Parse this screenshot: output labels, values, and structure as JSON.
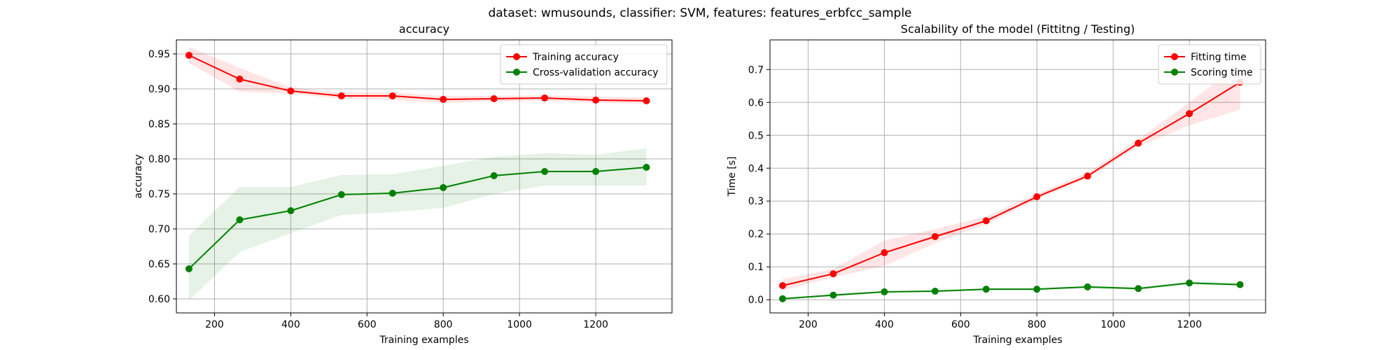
{
  "figure": {
    "suptitle": "dataset: wmusounds, classifier: SVM, features: features_erbfcc_sample"
  },
  "chart_data": [
    {
      "type": "line",
      "title": "accuracy",
      "xlabel": "Training examples",
      "ylabel": "accuracy",
      "xlim": [
        100,
        1400
      ],
      "ylim": [
        0.58,
        0.97
      ],
      "xticks": [
        200,
        400,
        600,
        800,
        1000,
        1200
      ],
      "yticks": [
        0.6,
        0.65,
        0.7,
        0.75,
        0.8,
        0.85,
        0.9,
        0.95
      ],
      "ytick_decimals": 2,
      "grid": true,
      "legend_position": "top-right",
      "x": [
        133,
        266,
        400,
        533,
        667,
        800,
        933,
        1066,
        1200,
        1333
      ],
      "series": [
        {
          "name": "Training accuracy",
          "color": "#ff0000",
          "values": [
            0.948,
            0.914,
            0.897,
            0.89,
            0.89,
            0.885,
            0.886,
            0.887,
            0.884,
            0.883
          ],
          "band_low": [
            0.937,
            0.896,
            0.893,
            0.886,
            0.884,
            0.88,
            0.882,
            0.883,
            0.88,
            0.879
          ],
          "band_high": [
            0.96,
            0.93,
            0.902,
            0.895,
            0.895,
            0.89,
            0.89,
            0.891,
            0.889,
            0.888
          ]
        },
        {
          "name": "Cross-validation accuracy",
          "color": "#008000",
          "values": [
            0.643,
            0.713,
            0.726,
            0.749,
            0.751,
            0.759,
            0.776,
            0.782,
            0.782,
            0.788
          ],
          "band_low": [
            0.598,
            0.667,
            0.694,
            0.72,
            0.724,
            0.73,
            0.75,
            0.762,
            0.762,
            0.762
          ],
          "band_high": [
            0.69,
            0.76,
            0.76,
            0.777,
            0.778,
            0.79,
            0.803,
            0.808,
            0.806,
            0.815
          ]
        }
      ]
    },
    {
      "type": "line",
      "title": "Scalability of the model (Fittitng / Testing)",
      "xlabel": "Training examples",
      "ylabel": "Time [s]",
      "xlim": [
        100,
        1400
      ],
      "ylim": [
        -0.04,
        0.79
      ],
      "xticks": [
        200,
        400,
        600,
        800,
        1000,
        1200
      ],
      "yticks": [
        0.0,
        0.1,
        0.2,
        0.3,
        0.4,
        0.5,
        0.6,
        0.7
      ],
      "ytick_decimals": 1,
      "grid": true,
      "legend_position": "top-right",
      "x": [
        133,
        266,
        400,
        533,
        667,
        800,
        933,
        1066,
        1200,
        1333
      ],
      "series": [
        {
          "name": "Fitting time",
          "color": "#ff0000",
          "values": [
            0.043,
            0.079,
            0.143,
            0.192,
            0.24,
            0.313,
            0.376,
            0.476,
            0.566,
            0.661
          ],
          "band_low": [
            0.028,
            0.068,
            0.103,
            0.172,
            0.23,
            0.305,
            0.368,
            0.466,
            0.53,
            0.578
          ],
          "band_high": [
            0.063,
            0.093,
            0.18,
            0.215,
            0.253,
            0.323,
            0.386,
            0.488,
            0.6,
            0.718
          ]
        },
        {
          "name": "Scoring time",
          "color": "#008000",
          "values": [
            0.003,
            0.014,
            0.024,
            0.026,
            0.032,
            0.032,
            0.039,
            0.034,
            0.051,
            0.046
          ],
          "band_low": [
            0.002,
            0.01,
            0.021,
            0.023,
            0.029,
            0.03,
            0.035,
            0.03,
            0.046,
            0.042
          ],
          "band_high": [
            0.005,
            0.018,
            0.027,
            0.029,
            0.035,
            0.035,
            0.043,
            0.038,
            0.056,
            0.05
          ]
        }
      ]
    }
  ]
}
